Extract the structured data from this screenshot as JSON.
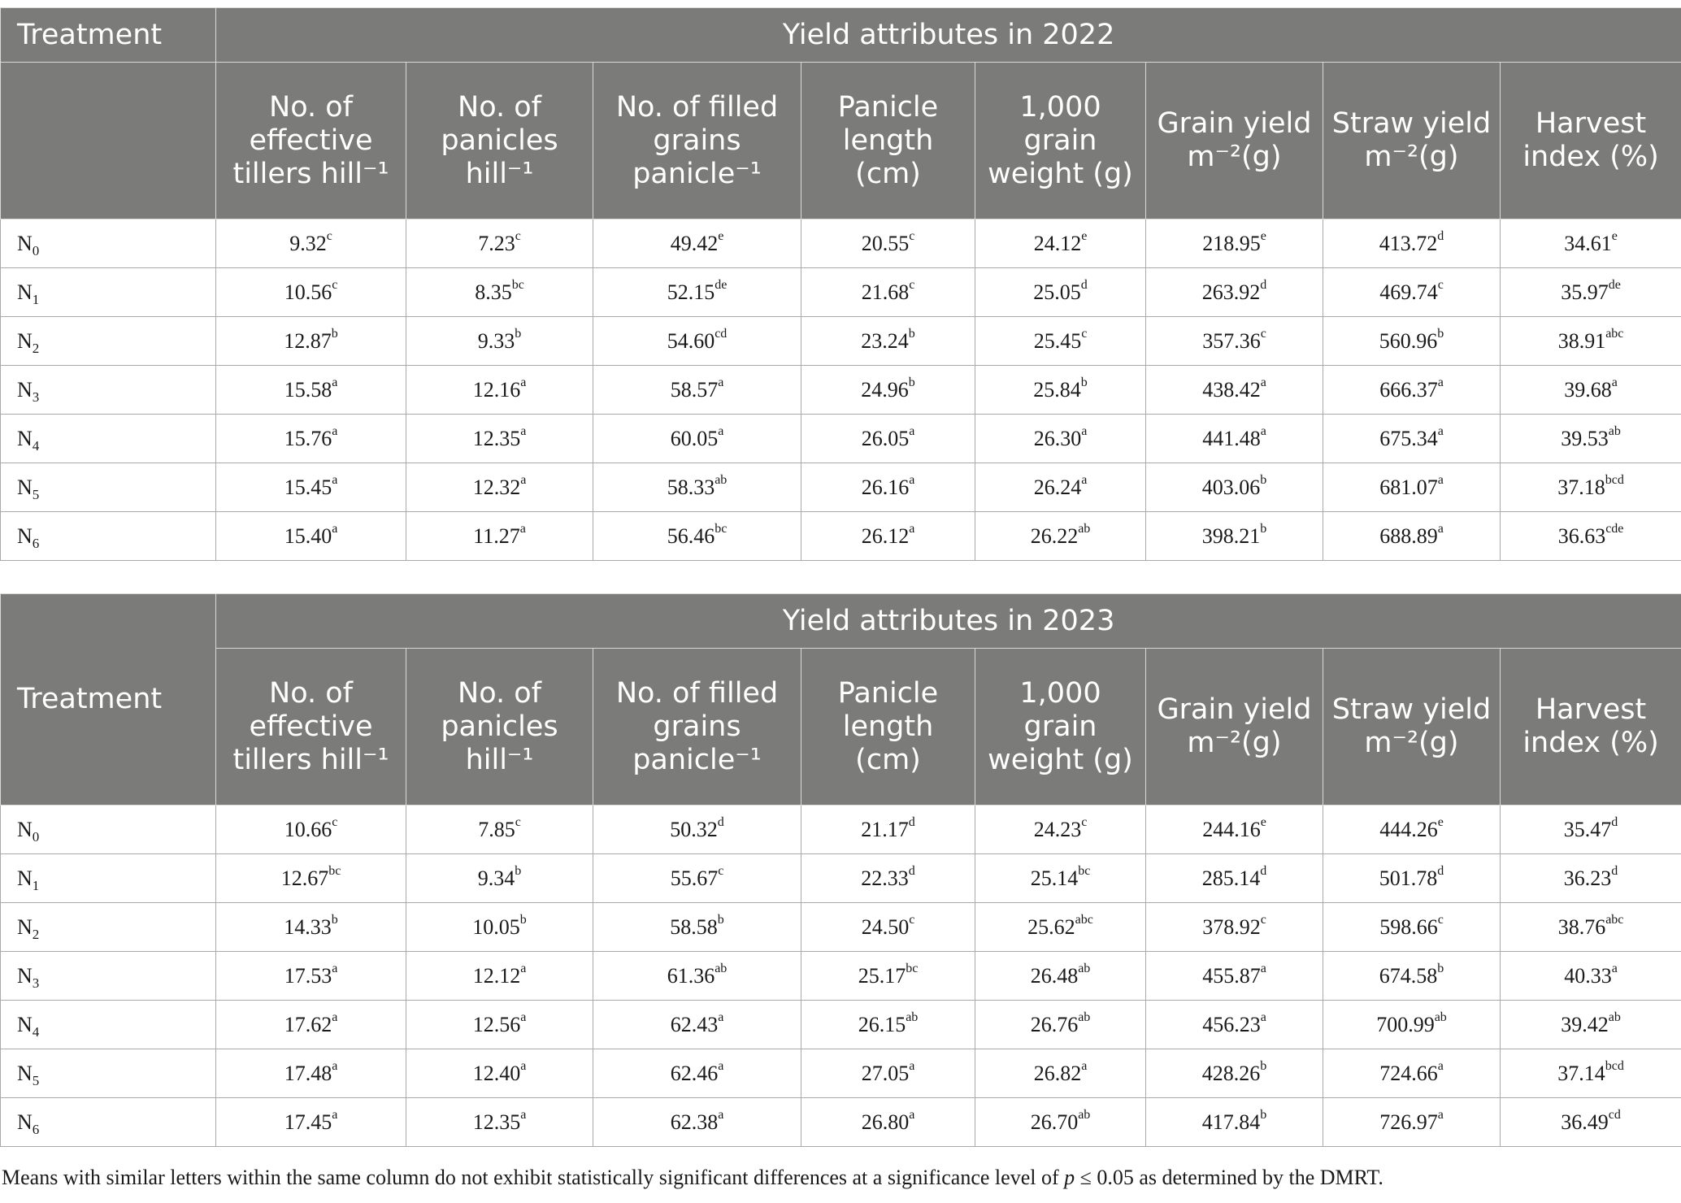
{
  "columns": [
    "No. of effective tillers hill⁻¹",
    "No. of panicles hill⁻¹",
    "No. of filled grains panicle⁻¹",
    "Panicle length (cm)",
    "1,000 grain weight (g)",
    "Grain yield m⁻²(g)",
    "Straw yield m⁻²(g)",
    "Harvest index (%)"
  ],
  "treatment_label": "Treatment",
  "tables": [
    {
      "title": "Yield attributes in 2022",
      "rows": [
        {
          "t": "N",
          "s": "0",
          "cells": [
            [
              "9.32",
              "c"
            ],
            [
              "7.23",
              "c"
            ],
            [
              "49.42",
              "e"
            ],
            [
              "20.55",
              "c"
            ],
            [
              "24.12",
              "e"
            ],
            [
              "218.95",
              "e"
            ],
            [
              "413.72",
              "d"
            ],
            [
              "34.61",
              "e"
            ]
          ]
        },
        {
          "t": "N",
          "s": "1",
          "cells": [
            [
              "10.56",
              "c"
            ],
            [
              "8.35",
              "bc"
            ],
            [
              "52.15",
              "de"
            ],
            [
              "21.68",
              "c"
            ],
            [
              "25.05",
              "d"
            ],
            [
              "263.92",
              "d"
            ],
            [
              "469.74",
              "c"
            ],
            [
              "35.97",
              "de"
            ]
          ]
        },
        {
          "t": "N",
          "s": "2",
          "cells": [
            [
              "12.87",
              "b"
            ],
            [
              "9.33",
              "b"
            ],
            [
              "54.60",
              "cd"
            ],
            [
              "23.24",
              "b"
            ],
            [
              "25.45",
              "c"
            ],
            [
              "357.36",
              "c"
            ],
            [
              "560.96",
              "b"
            ],
            [
              "38.91",
              "abc"
            ]
          ]
        },
        {
          "t": "N",
          "s": "3",
          "cells": [
            [
              "15.58",
              "a"
            ],
            [
              "12.16",
              "a"
            ],
            [
              "58.57",
              "a"
            ],
            [
              "24.96",
              "b"
            ],
            [
              "25.84",
              "b"
            ],
            [
              "438.42",
              "a"
            ],
            [
              "666.37",
              "a"
            ],
            [
              "39.68",
              "a"
            ]
          ]
        },
        {
          "t": "N",
          "s": "4",
          "cells": [
            [
              "15.76",
              "a"
            ],
            [
              "12.35",
              "a"
            ],
            [
              "60.05",
              "a"
            ],
            [
              "26.05",
              "a"
            ],
            [
              "26.30",
              "a"
            ],
            [
              "441.48",
              "a"
            ],
            [
              "675.34",
              "a"
            ],
            [
              "39.53",
              "ab"
            ]
          ]
        },
        {
          "t": "N",
          "s": "5",
          "cells": [
            [
              "15.45",
              "a"
            ],
            [
              "12.32",
              "a"
            ],
            [
              "58.33",
              "ab"
            ],
            [
              "26.16",
              "a"
            ],
            [
              "26.24",
              "a"
            ],
            [
              "403.06",
              "b"
            ],
            [
              "681.07",
              "a"
            ],
            [
              "37.18",
              "bcd"
            ]
          ]
        },
        {
          "t": "N",
          "s": "6",
          "cells": [
            [
              "15.40",
              "a"
            ],
            [
              "11.27",
              "a"
            ],
            [
              "56.46",
              "bc"
            ],
            [
              "26.12",
              "a"
            ],
            [
              "26.22",
              "ab"
            ],
            [
              "398.21",
              "b"
            ],
            [
              "688.89",
              "a"
            ],
            [
              "36.63",
              "cde"
            ]
          ]
        }
      ]
    },
    {
      "title": "Yield attributes in 2023",
      "rows": [
        {
          "t": "N",
          "s": "0",
          "cells": [
            [
              "10.66",
              "c"
            ],
            [
              "7.85",
              "c"
            ],
            [
              "50.32",
              "d"
            ],
            [
              "21.17",
              "d"
            ],
            [
              "24.23",
              "c"
            ],
            [
              "244.16",
              "e"
            ],
            [
              "444.26",
              "e"
            ],
            [
              "35.47",
              "d"
            ]
          ]
        },
        {
          "t": "N",
          "s": "1",
          "cells": [
            [
              "12.67",
              "bc"
            ],
            [
              "9.34",
              "b"
            ],
            [
              "55.67",
              "c"
            ],
            [
              "22.33",
              "d"
            ],
            [
              "25.14",
              "bc"
            ],
            [
              "285.14",
              "d"
            ],
            [
              "501.78",
              "d"
            ],
            [
              "36.23",
              "d"
            ]
          ]
        },
        {
          "t": "N",
          "s": "2",
          "cells": [
            [
              "14.33",
              "b"
            ],
            [
              "10.05",
              "b"
            ],
            [
              "58.58",
              "b"
            ],
            [
              "24.50",
              "c"
            ],
            [
              "25.62",
              "abc"
            ],
            [
              "378.92",
              "c"
            ],
            [
              "598.66",
              "c"
            ],
            [
              "38.76",
              "abc"
            ]
          ]
        },
        {
          "t": "N",
          "s": "3",
          "cells": [
            [
              "17.53",
              "a"
            ],
            [
              "12.12",
              "a"
            ],
            [
              "61.36",
              "ab"
            ],
            [
              "25.17",
              "bc"
            ],
            [
              "26.48",
              "ab"
            ],
            [
              "455.87",
              "a"
            ],
            [
              "674.58",
              "b"
            ],
            [
              "40.33",
              "a"
            ]
          ]
        },
        {
          "t": "N",
          "s": "4",
          "cells": [
            [
              "17.62",
              "a"
            ],
            [
              "12.56",
              "a"
            ],
            [
              "62.43",
              "a"
            ],
            [
              "26.15",
              "ab"
            ],
            [
              "26.76",
              "ab"
            ],
            [
              "456.23",
              "a"
            ],
            [
              "700.99",
              "ab"
            ],
            [
              "39.42",
              "ab"
            ]
          ]
        },
        {
          "t": "N",
          "s": "5",
          "cells": [
            [
              "17.48",
              "a"
            ],
            [
              "12.40",
              "a"
            ],
            [
              "62.46",
              "a"
            ],
            [
              "27.05",
              "a"
            ],
            [
              "26.82",
              "a"
            ],
            [
              "428.26",
              "b"
            ],
            [
              "724.66",
              "a"
            ],
            [
              "37.14",
              "bcd"
            ]
          ]
        },
        {
          "t": "N",
          "s": "6",
          "cells": [
            [
              "17.45",
              "a"
            ],
            [
              "12.35",
              "a"
            ],
            [
              "62.38",
              "a"
            ],
            [
              "26.80",
              "a"
            ],
            [
              "26.70",
              "ab"
            ],
            [
              "417.84",
              "b"
            ],
            [
              "726.97",
              "a"
            ],
            [
              "36.49",
              "cd"
            ]
          ]
        }
      ]
    }
  ],
  "footnote": {
    "before": "Means with similar letters within the same column do not exhibit statistically significant differences at a significance level of ",
    "italic": "p",
    "after": " ≤ 0.05 as determined by the DMRT."
  }
}
